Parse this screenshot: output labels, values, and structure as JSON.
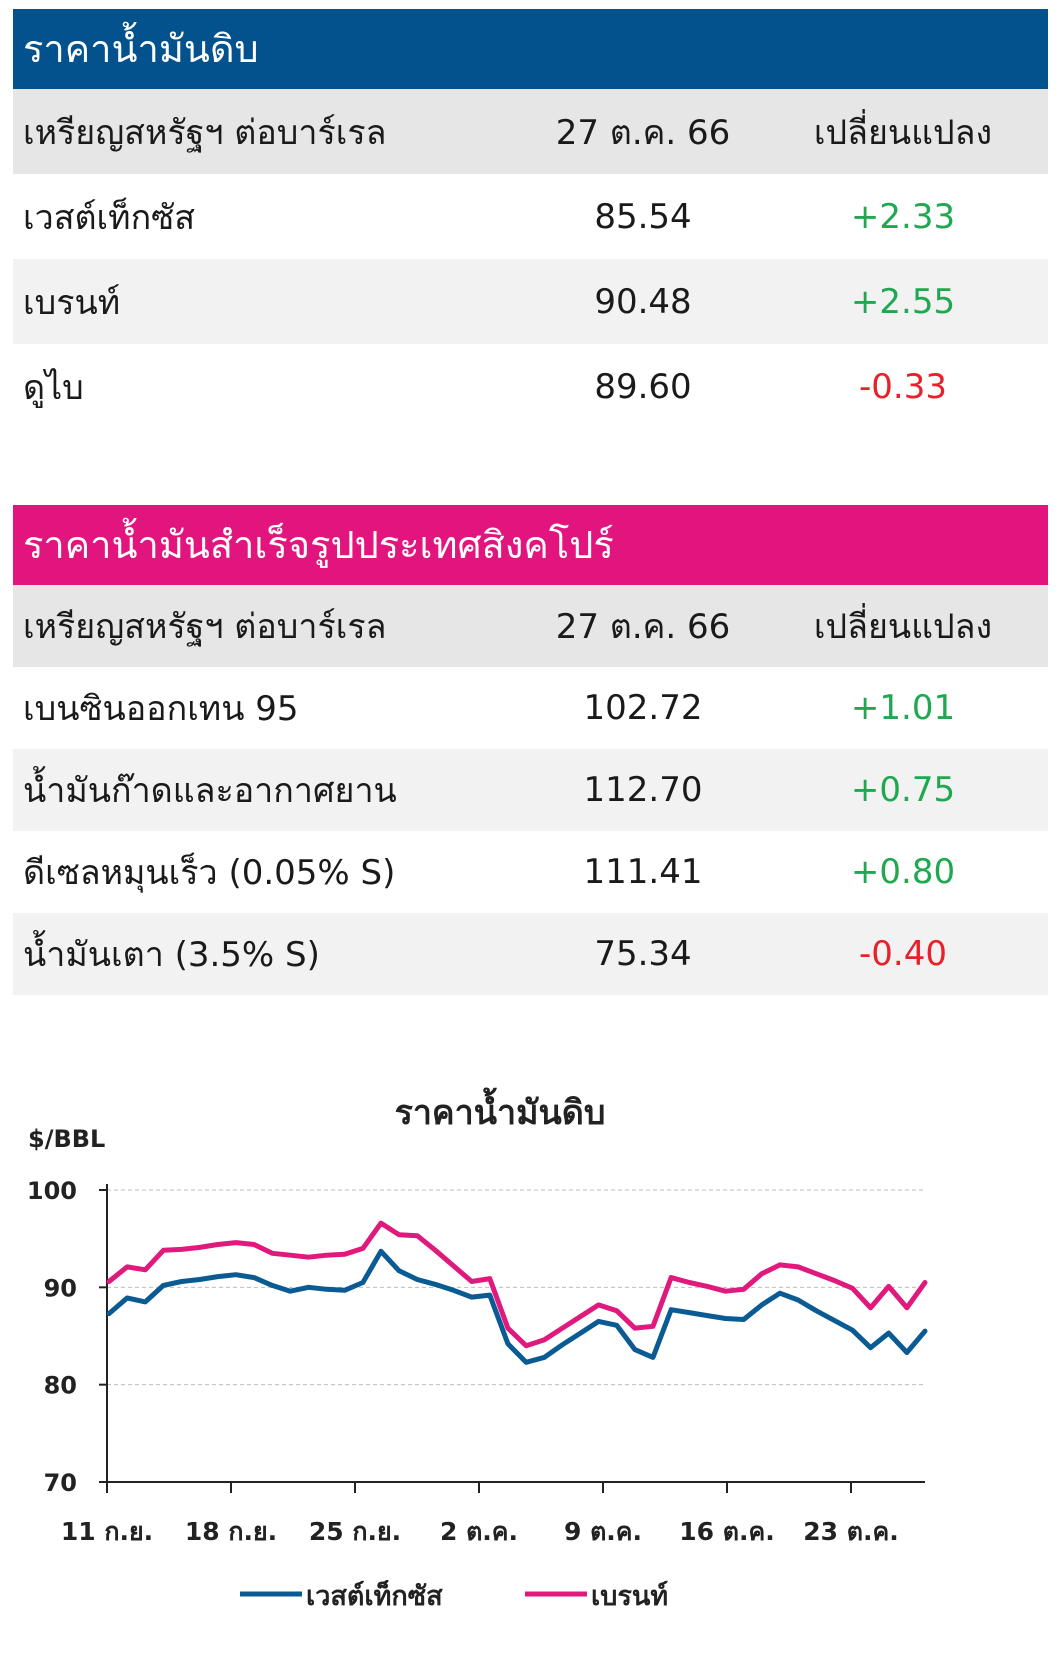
{
  "crude_table": {
    "title": "ราคาน้ำมันดิบ",
    "header": {
      "label": "เหรียญสหรัฐฯ ต่อบาร์เรล",
      "date": "27 ต.ค. 66",
      "change": "เปลี่ยนแปลง"
    },
    "rows": [
      {
        "name": "เวสต์เท็กซัส",
        "price": "85.54",
        "change": "+2.33"
      },
      {
        "name": "เบรนท์",
        "price": "90.48",
        "change": "+2.55"
      },
      {
        "name": "ดูไบ",
        "price": "89.60",
        "change": "-0.33"
      }
    ]
  },
  "singapore_table": {
    "title": "ราคาน้ำมันสำเร็จรูปประเทศสิงคโปร์",
    "header": {
      "label": "เหรียญสหรัฐฯ ต่อบาร์เรล",
      "date": "27 ต.ค. 66",
      "change": "เปลี่ยนแปลง"
    },
    "rows": [
      {
        "name": "เบนซินออกเทน 95",
        "price": "102.72",
        "change": "+1.01"
      },
      {
        "name": "น้ำมันก๊าดและอากาศยาน",
        "price": "112.70",
        "change": "+0.75"
      },
      {
        "name": "ดีเซลหมุนเร็ว (0.05% S)",
        "price": "111.41",
        "change": "+0.80"
      },
      {
        "name": "น้ำมันเตา (3.5% S)",
        "price": "75.34",
        "change": "-0.40"
      }
    ]
  },
  "colors": {
    "positive": "#1fa84f",
    "negative": "#e8202a",
    "crude_header": "#03528e",
    "sg_header": "#e2157f",
    "wti_line": "#0a5a94",
    "brent_line": "#e0197d"
  },
  "chart_data": {
    "type": "line",
    "title": "ราคาน้ำมันดิบ",
    "ylabel": "$/BBL",
    "ylim": [
      70,
      100
    ],
    "yticks": [
      70,
      80,
      90,
      100
    ],
    "xlabels": [
      "11 ก.ย.",
      "18 ก.ย.",
      "25 ก.ย.",
      "2 ต.ค.",
      "9 ต.ค.",
      "16 ต.ค.",
      "23 ต.ค."
    ],
    "grid": true,
    "legend_position": "bottom",
    "series": [
      {
        "name": "เวสต์เท็กซัส",
        "values": [
          87.3,
          88.9,
          88.5,
          90.2,
          90.6,
          90.8,
          91.1,
          91.3,
          91.0,
          90.2,
          89.6,
          90.0,
          89.8,
          89.7,
          90.5,
          93.7,
          91.7,
          90.8,
          90.3,
          89.7,
          89.0,
          89.2,
          84.2,
          82.3,
          82.8,
          84.1,
          85.3,
          86.5,
          86.1,
          83.6,
          82.8,
          87.7,
          87.4,
          87.1,
          86.8,
          86.7,
          88.2,
          89.4,
          88.7,
          87.6,
          86.6,
          85.6,
          83.8,
          85.3,
          83.3,
          85.5
        ]
      },
      {
        "name": "เบรนท์",
        "values": [
          90.6,
          92.1,
          91.8,
          93.8,
          93.9,
          94.1,
          94.4,
          94.6,
          94.4,
          93.5,
          93.3,
          93.1,
          93.3,
          93.4,
          94.0,
          96.6,
          95.4,
          95.3,
          93.8,
          92.2,
          90.6,
          90.9,
          85.8,
          84.0,
          84.6,
          85.8,
          87.0,
          88.2,
          87.6,
          85.8,
          86.0,
          91.0,
          90.5,
          90.1,
          89.6,
          89.8,
          91.4,
          92.3,
          92.1,
          91.4,
          90.7,
          89.9,
          87.9,
          90.1,
          87.9,
          90.5
        ]
      }
    ]
  }
}
